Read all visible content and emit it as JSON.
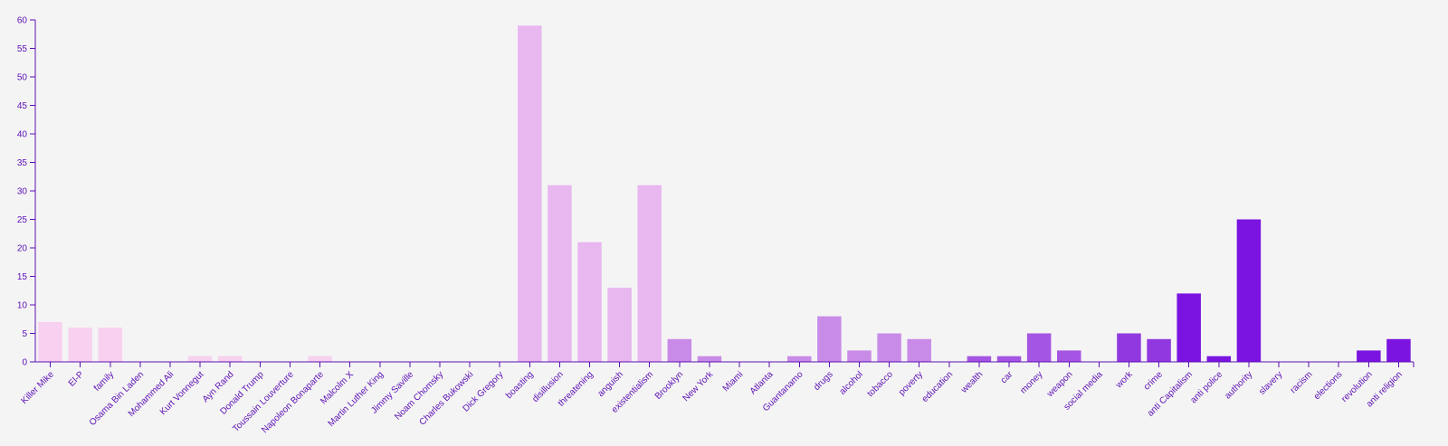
{
  "chart_data": {
    "type": "bar",
    "title": "",
    "xlabel": "",
    "ylabel": "",
    "ylim": [
      0,
      60
    ],
    "yticks": [
      0,
      5,
      10,
      15,
      20,
      25,
      30,
      35,
      40,
      45,
      50,
      55,
      60
    ],
    "grid": false,
    "categories": [
      "Killer Mike",
      "El-P",
      "family",
      "Osama Bin Laden",
      "Mohammed Ali",
      "Kurt Vonnegut",
      "Ayn Rand",
      "Donald Trump",
      "Toussain Louverture",
      "Napoleon Bonaparte",
      "Malcolm X",
      "Martin Luther King",
      "Jimmy Saville",
      "Noam Chomsky",
      "Charles Bukowski",
      "Dick Gregory",
      "boasting",
      "disillusion",
      "threatening",
      "anguish",
      "existentialism",
      "Brooklyn",
      "New York",
      "Miami",
      "Atlanta",
      "Guantanamo",
      "drugs",
      "alcohol",
      "tobacco",
      "poverty",
      "education",
      "wealth",
      "car",
      "money",
      "weapon",
      "social media",
      "work",
      "crime",
      "anti Capitalism",
      "anti police",
      "authority",
      "slavery",
      "racism",
      "elections",
      "revolution",
      "anti religion"
    ],
    "values": [
      7,
      6,
      6,
      0,
      0,
      1,
      1,
      0,
      0,
      1,
      0,
      0,
      0,
      0,
      0,
      0,
      59,
      31,
      21,
      13,
      31,
      4,
      1,
      0,
      0,
      1,
      8,
      2,
      5,
      4,
      0,
      1,
      1,
      5,
      2,
      0,
      5,
      4,
      12,
      1,
      25,
      0,
      0,
      0,
      2,
      4
    ],
    "colors": [
      "#f7d1ef",
      "#f7d1ef",
      "#f7d1ef",
      "#f7d1ef",
      "#f7d1ef",
      "#f7d1ef",
      "#f7d1ef",
      "#f7d1ef",
      "#f7d1ef",
      "#f7d1ef",
      "#f7d1ef",
      "#f7d1ef",
      "#f7d1ef",
      "#f7d1ef",
      "#f7d1ef",
      "#f7d1ef",
      "#e8b7f0",
      "#e8b7f0",
      "#e8b7f0",
      "#e8b7f0",
      "#e8b7f0",
      "#c98be8",
      "#c98be8",
      "#c98be8",
      "#c98be8",
      "#c98be8",
      "#c98be8",
      "#c98be8",
      "#c98be8",
      "#c98be8",
      "#a455e3",
      "#a455e3",
      "#a455e3",
      "#a455e3",
      "#a455e3",
      "#a455e3",
      "#9138e0",
      "#9138e0",
      "#7b14e0",
      "#7b14e0",
      "#7b14e0",
      "#7b14e0",
      "#7b14e0",
      "#7b14e0",
      "#7b14e0",
      "#7b14e0"
    ],
    "axis_color": "#5b0fb5",
    "background": "#f4f4f4"
  }
}
